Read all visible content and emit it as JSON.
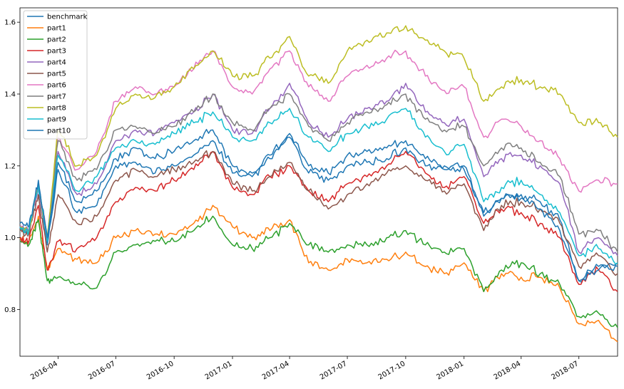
{
  "chart_data": {
    "type": "line",
    "title": "",
    "xlabel": "",
    "ylabel": "",
    "x_ticks": [
      "2016-04",
      "2016-07",
      "2016-10",
      "2017-01",
      "2017-04",
      "2017-07",
      "2017-10",
      "2018-01",
      "2018-04",
      "2018-07"
    ],
    "x_range": [
      "2016-02-01",
      "2018-08-31"
    ],
    "y_ticks": [
      "0.8",
      "1.0",
      "1.2",
      "1.4",
      "1.6"
    ],
    "ylim": [
      0.67,
      1.64
    ],
    "grid": false,
    "legend_position": "upper-left",
    "x": [
      "2016-02-01",
      "2016-02-15",
      "2016-03-01",
      "2016-03-15",
      "2016-04-01",
      "2016-05-01",
      "2016-06-01",
      "2016-07-01",
      "2016-08-01",
      "2016-09-01",
      "2016-10-01",
      "2016-11-01",
      "2016-12-01",
      "2017-01-01",
      "2017-02-01",
      "2017-03-01",
      "2017-04-01",
      "2017-05-01",
      "2017-06-01",
      "2017-07-01",
      "2017-08-01",
      "2017-09-01",
      "2017-10-01",
      "2017-11-01",
      "2017-12-01",
      "2018-01-01",
      "2018-02-01",
      "2018-03-01",
      "2018-04-01",
      "2018-05-01",
      "2018-06-01",
      "2018-07-01",
      "2018-08-01",
      "2018-08-31"
    ],
    "series": [
      {
        "name": "benchmark",
        "color": "#1f77b4",
        "values": [
          1.03,
          1.02,
          1.14,
          0.98,
          1.19,
          1.07,
          1.09,
          1.2,
          1.21,
          1.18,
          1.2,
          1.23,
          1.27,
          1.18,
          1.17,
          1.22,
          1.28,
          1.18,
          1.16,
          1.2,
          1.21,
          1.22,
          1.25,
          1.2,
          1.19,
          1.19,
          1.06,
          1.11,
          1.12,
          1.1,
          1.05,
          0.88,
          0.92,
          0.93
        ]
      },
      {
        "name": "part1",
        "color": "#ff7f0e",
        "values": [
          1.0,
          0.99,
          1.06,
          0.91,
          0.97,
          0.94,
          0.93,
          1.0,
          1.02,
          1.01,
          1.01,
          1.04,
          1.09,
          1.03,
          1.0,
          1.02,
          1.05,
          0.93,
          0.91,
          0.94,
          0.93,
          0.94,
          0.96,
          0.92,
          0.9,
          0.93,
          0.85,
          0.9,
          0.89,
          0.89,
          0.86,
          0.76,
          0.77,
          0.71
        ]
      },
      {
        "name": "part2",
        "color": "#2ca02c",
        "values": [
          0.99,
          0.98,
          1.05,
          0.88,
          0.89,
          0.87,
          0.86,
          0.96,
          0.98,
          0.99,
          0.99,
          1.02,
          1.06,
          0.98,
          0.97,
          1.0,
          1.04,
          0.98,
          0.96,
          0.98,
          0.98,
          1.0,
          1.02,
          0.98,
          0.96,
          0.97,
          0.85,
          0.91,
          0.93,
          0.9,
          0.87,
          0.78,
          0.79,
          0.75
        ]
      },
      {
        "name": "part3",
        "color": "#d62728",
        "values": [
          1.0,
          0.99,
          1.09,
          0.91,
          0.99,
          0.97,
          1.0,
          1.1,
          1.14,
          1.13,
          1.16,
          1.19,
          1.24,
          1.14,
          1.12,
          1.17,
          1.2,
          1.13,
          1.1,
          1.15,
          1.17,
          1.2,
          1.24,
          1.18,
          1.14,
          1.17,
          1.04,
          1.08,
          1.07,
          1.04,
          1.0,
          0.87,
          0.91,
          0.85
        ]
      },
      {
        "name": "part4",
        "color": "#9467bd",
        "values": [
          1.03,
          1.02,
          1.14,
          0.99,
          1.24,
          1.12,
          1.15,
          1.27,
          1.3,
          1.29,
          1.32,
          1.35,
          1.4,
          1.3,
          1.29,
          1.36,
          1.43,
          1.32,
          1.28,
          1.33,
          1.36,
          1.38,
          1.43,
          1.35,
          1.32,
          1.33,
          1.17,
          1.22,
          1.23,
          1.2,
          1.15,
          0.96,
          1.0,
          0.95
        ]
      },
      {
        "name": "part5",
        "color": "#8c564b",
        "values": [
          1.02,
          1.01,
          1.12,
          0.96,
          1.12,
          1.04,
          1.06,
          1.16,
          1.19,
          1.17,
          1.19,
          1.21,
          1.24,
          1.15,
          1.13,
          1.17,
          1.21,
          1.13,
          1.08,
          1.12,
          1.15,
          1.18,
          1.2,
          1.16,
          1.13,
          1.15,
          1.02,
          1.09,
          1.1,
          1.08,
          1.04,
          0.92,
          0.95,
          0.9
        ]
      },
      {
        "name": "part6",
        "color": "#e377c2",
        "values": [
          1.03,
          1.02,
          1.15,
          1.0,
          1.28,
          1.19,
          1.24,
          1.38,
          1.42,
          1.4,
          1.42,
          1.47,
          1.52,
          1.42,
          1.4,
          1.47,
          1.52,
          1.42,
          1.38,
          1.45,
          1.48,
          1.5,
          1.52,
          1.45,
          1.41,
          1.42,
          1.28,
          1.33,
          1.31,
          1.27,
          1.22,
          1.13,
          1.16,
          1.15
        ]
      },
      {
        "name": "part7",
        "color": "#7f7f7f",
        "values": [
          1.03,
          1.02,
          1.15,
          1.0,
          1.27,
          1.16,
          1.19,
          1.3,
          1.31,
          1.29,
          1.31,
          1.35,
          1.4,
          1.32,
          1.3,
          1.36,
          1.4,
          1.31,
          1.27,
          1.32,
          1.35,
          1.37,
          1.4,
          1.33,
          1.3,
          1.31,
          1.2,
          1.25,
          1.25,
          1.21,
          1.17,
          1.01,
          1.02,
          0.96
        ]
      },
      {
        "name": "part8",
        "color": "#bcbd22",
        "values": [
          1.03,
          1.02,
          1.15,
          1.0,
          1.3,
          1.2,
          1.23,
          1.36,
          1.4,
          1.39,
          1.42,
          1.47,
          1.52,
          1.45,
          1.45,
          1.5,
          1.56,
          1.45,
          1.43,
          1.52,
          1.55,
          1.57,
          1.59,
          1.55,
          1.52,
          1.5,
          1.38,
          1.42,
          1.44,
          1.42,
          1.4,
          1.32,
          1.32,
          1.28
        ]
      },
      {
        "name": "part9",
        "color": "#17becf",
        "values": [
          1.03,
          1.02,
          1.15,
          0.99,
          1.23,
          1.13,
          1.17,
          1.25,
          1.27,
          1.26,
          1.29,
          1.32,
          1.35,
          1.28,
          1.27,
          1.32,
          1.36,
          1.28,
          1.24,
          1.29,
          1.31,
          1.33,
          1.36,
          1.28,
          1.24,
          1.26,
          1.1,
          1.14,
          1.16,
          1.12,
          1.07,
          0.95,
          0.97,
          0.93
        ]
      },
      {
        "name": "part10",
        "color": "#1f77b4",
        "values": [
          1.04,
          1.03,
          1.16,
          1.0,
          1.21,
          1.1,
          1.13,
          1.22,
          1.25,
          1.22,
          1.24,
          1.27,
          1.3,
          1.2,
          1.18,
          1.23,
          1.29,
          1.2,
          1.18,
          1.23,
          1.24,
          1.25,
          1.27,
          1.22,
          1.2,
          1.2,
          1.07,
          1.11,
          1.11,
          1.08,
          1.02,
          0.88,
          0.91,
          0.92
        ]
      }
    ]
  }
}
